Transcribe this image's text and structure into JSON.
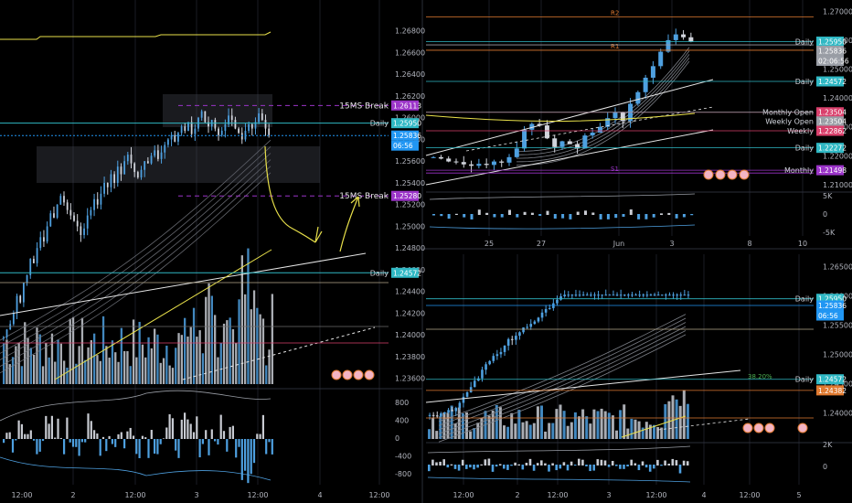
{
  "colors": {
    "background": "#000000",
    "grid": "#1a1d24",
    "up": "#4ea0e0",
    "down": "#d1d4dc",
    "yellow": "#e8e04a",
    "teal": "#2fb8c4",
    "purple": "#9b34c8",
    "pink": "#d9406c",
    "orange": "#e07a30",
    "gray": "#9a9ea6",
    "white": "#e6e6e6",
    "current": "#2196f3"
  },
  "chart_data": [
    {
      "type": "candlestick",
      "panel": "left",
      "y_axis_ticks": [
        "1.26800",
        "1.26600",
        "1.26400",
        "1.26200",
        "1.26000",
        "1.25800",
        "1.25600",
        "1.25400",
        "1.25200",
        "1.25000",
        "1.24800",
        "1.24600",
        "1.24400",
        "1.24200",
        "1.24000",
        "1.23800",
        "1.23600"
      ],
      "x_axis_ticks": [
        "12:00",
        "2",
        "12:00",
        "3",
        "12:00",
        "4",
        "12:00"
      ],
      "ylim": [
        1.2353,
        1.27
      ],
      "levels": [
        {
          "label": "15MS Break",
          "value": 1.26113,
          "tag": "1.26113",
          "color": "purple",
          "style": "dashed"
        },
        {
          "label": "Daily",
          "value": 1.2595,
          "tag": "1.25950",
          "color": "teal",
          "style": "solid"
        },
        {
          "label": "",
          "value": 1.25836,
          "tag": "1.25836",
          "color": "current",
          "style": "dotted",
          "countdown": "06:56"
        },
        {
          "label": "15MS Break",
          "value": 1.2528,
          "tag": "1.25280",
          "color": "purple",
          "style": "dashed"
        },
        {
          "label": "Daily",
          "value": 1.24572,
          "tag": "1.24572",
          "color": "teal",
          "style": "solid"
        }
      ],
      "candles_last_n": 110,
      "close_series": [
        1.2398,
        1.2405,
        1.241,
        1.242,
        1.2436,
        1.243,
        1.2448,
        1.2455,
        1.247,
        1.2466,
        1.248,
        1.249,
        1.2486,
        1.25,
        1.2512,
        1.2508,
        1.252,
        1.2528,
        1.2522,
        1.2515,
        1.251,
        1.2505,
        1.25,
        1.2492,
        1.2498,
        1.251,
        1.2515,
        1.2525,
        1.252,
        1.253,
        1.254,
        1.2536,
        1.2548,
        1.254,
        1.2555,
        1.2548,
        1.256,
        1.2566,
        1.2558,
        1.255,
        1.2545,
        1.2552,
        1.256,
        1.2558,
        1.2565,
        1.257,
        1.2562,
        1.2568,
        1.2575,
        1.258,
        1.2584,
        1.2578,
        1.2586,
        1.2592,
        1.2588,
        1.2596,
        1.2585,
        1.259,
        1.26,
        1.2606,
        1.2596,
        1.2592,
        1.2598,
        1.259,
        1.2584,
        1.2588,
        1.2594,
        1.2602,
        1.2598,
        1.259,
        1.2586,
        1.258,
        1.2588,
        1.2594,
        1.259,
        1.2596,
        1.2604,
        1.2598,
        1.259,
        1.2584
      ]
    },
    {
      "type": "candlestick",
      "panel": "top-right",
      "y_axis_ticks": [
        "1.27000",
        "1.26000",
        "1.25000",
        "1.24000",
        "1.23000",
        "1.22000",
        "1.21000"
      ],
      "x_axis_ticks": [
        "25",
        "27",
        "Jun",
        "3",
        "8",
        "10"
      ],
      "ylim": [
        1.209,
        1.272
      ],
      "pivots": [
        {
          "label": "R2",
          "value": 1.268,
          "color": "orange"
        },
        {
          "label": "R1",
          "value": 1.2565,
          "color": "orange"
        },
        {
          "label": "S1",
          "value": 1.214,
          "color": "purple"
        }
      ],
      "levels": [
        {
          "label": "Daily",
          "value": 1.2595,
          "tag": "1.25950",
          "color": "teal"
        },
        {
          "label": "",
          "value": 1.25836,
          "tag": "1.25836",
          "color": "gray",
          "countdown": "02:06:56"
        },
        {
          "label": "Daily",
          "value": 1.24572,
          "tag": "1.24572",
          "color": "teal"
        },
        {
          "label": "Monthly Open",
          "value": 1.23504,
          "tag": "1.23504",
          "color": "pink"
        },
        {
          "label": "Weekly Open",
          "value": 1.23504,
          "tag": "1.23504",
          "color": "gray"
        },
        {
          "label": "Weekly",
          "value": 1.22862,
          "tag": "1.22862",
          "color": "pink"
        },
        {
          "label": "Daily",
          "value": 1.22272,
          "tag": "1.22272",
          "color": "teal"
        },
        {
          "label": "Monthly",
          "value": 1.21498,
          "tag": "1.21498",
          "color": "purple"
        }
      ],
      "oscillator_ticks": [
        "5K",
        "0",
        "-5K"
      ]
    },
    {
      "type": "candlestick",
      "panel": "bottom-right",
      "y_axis_ticks": [
        "1.26500",
        "1.26000",
        "1.25500",
        "1.25000",
        "1.24500",
        "1.24000"
      ],
      "x_axis_ticks": [
        "12:00",
        "2",
        "12:00",
        "3",
        "12:00",
        "4",
        "12:00",
        "5"
      ],
      "ylim": [
        1.2355,
        1.2665
      ],
      "levels": [
        {
          "label": "Daily",
          "value": 1.2595,
          "tag": "1.25950",
          "color": "teal"
        },
        {
          "label": "",
          "value": 1.25836,
          "tag": "1.25836",
          "color": "current",
          "countdown": "06:56"
        },
        {
          "label": "Daily",
          "value": 1.24572,
          "tag": "1.24572",
          "color": "teal"
        },
        {
          "label": "",
          "value": 1.24382,
          "tag": "1.24382",
          "color": "orange"
        }
      ],
      "fib_label": "38.20%",
      "oscillator_ticks": [
        "2K",
        "0"
      ]
    }
  ],
  "left_osc_ticks": [
    "800",
    "400",
    "0",
    "-400",
    "-800"
  ]
}
